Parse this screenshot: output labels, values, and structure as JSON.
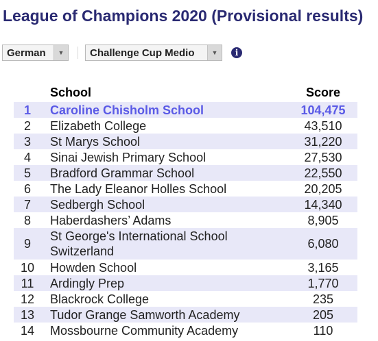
{
  "header": {
    "title": "League of Champions 2020 (Provisional results)"
  },
  "filters": {
    "language": "German",
    "competition": "Challenge Cup Medio",
    "info_symbol": "i"
  },
  "table": {
    "headers": {
      "rank": "",
      "school": "School",
      "score": "Score"
    },
    "rows": [
      {
        "rank": "1",
        "school": "Caroline Chisholm School",
        "score": "104,475"
      },
      {
        "rank": "2",
        "school": "Elizabeth College",
        "score": "43,510"
      },
      {
        "rank": "3",
        "school": "St Marys School",
        "score": "31,220"
      },
      {
        "rank": "4",
        "school": "Sinai Jewish Primary School",
        "score": "27,530"
      },
      {
        "rank": "5",
        "school": "Bradford Grammar School",
        "score": "22,550"
      },
      {
        "rank": "6",
        "school": "The Lady Eleanor Holles School",
        "score": "20,205"
      },
      {
        "rank": "7",
        "school": "Sedbergh School",
        "score": "14,340"
      },
      {
        "rank": "8",
        "school": "Haberdashers’ Adams",
        "score": "8,905"
      },
      {
        "rank": "9",
        "school": "St George's International School Switzerland",
        "score": "6,080"
      },
      {
        "rank": "10",
        "school": "Howden School",
        "score": "3,165"
      },
      {
        "rank": "11",
        "school": "Ardingly Prep",
        "score": "1,770"
      },
      {
        "rank": "12",
        "school": "Blackrock College",
        "score": "235"
      },
      {
        "rank": "13",
        "school": "Tudor Grange Samworth Academy",
        "score": "205"
      },
      {
        "rank": "14",
        "school": "Mossbourne Community Academy",
        "score": "110"
      }
    ]
  },
  "colors": {
    "title": "#2a2a72",
    "highlight_text": "#5a5ae6",
    "stripe": "#e8e8f8"
  }
}
